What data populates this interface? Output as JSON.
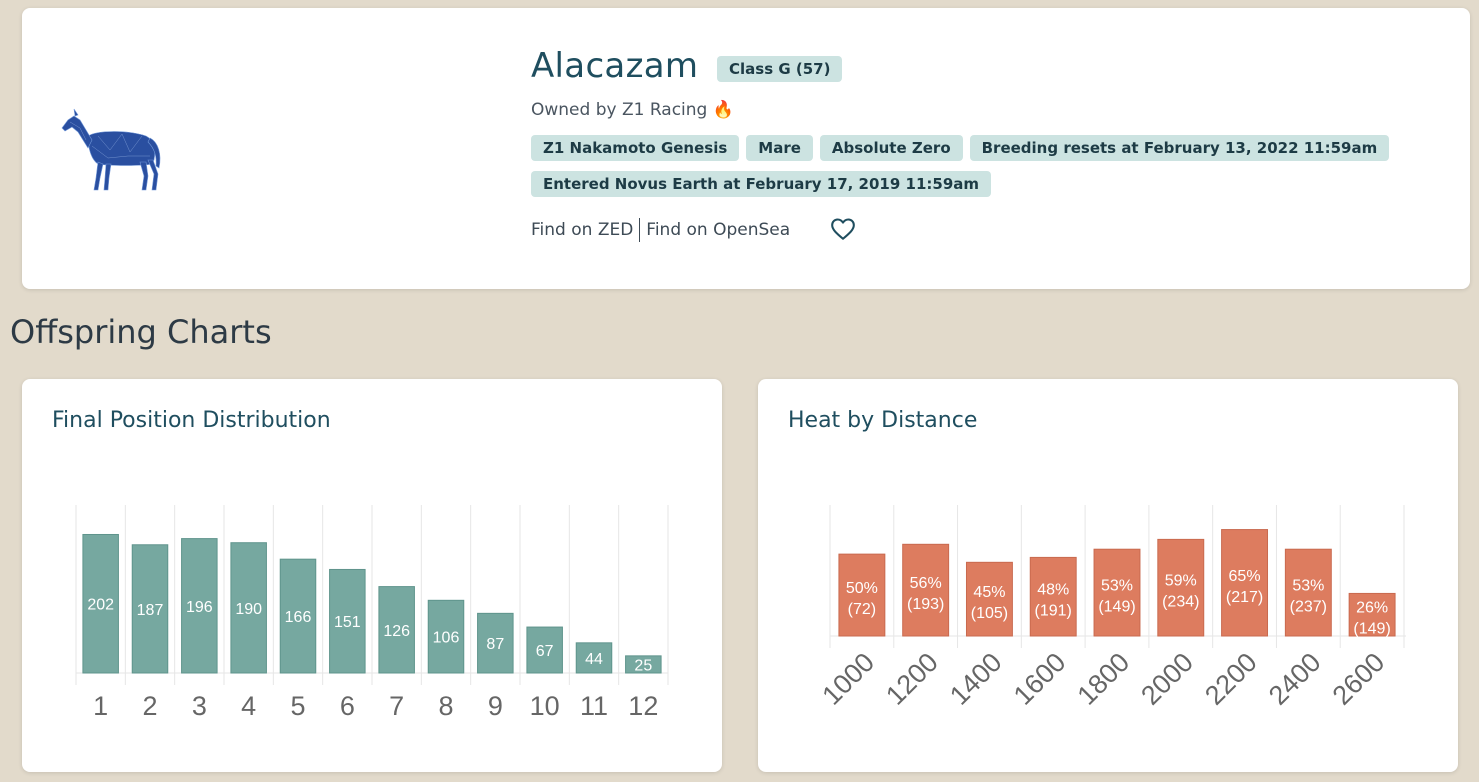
{
  "horse": {
    "name": "Alacazam",
    "class_badge": "Class G (57)",
    "owner_prefix": "Owned by ",
    "owner_name": "Z1 Racing",
    "owner_emoji": "🔥",
    "tags_row1": [
      "Z1 Nakamoto Genesis",
      "Mare",
      "Absolute Zero",
      "Breeding resets at February 13, 2022 11:59am"
    ],
    "tags_row2": [
      "Entered Novus Earth at February 17, 2019 11:59am"
    ],
    "link_zed": "Find on ZED",
    "link_opensea": "Find on OpenSea",
    "favorite_icon": "heart-icon",
    "image_icon": "horse-icon",
    "horse_color": "#2a4fa0"
  },
  "section_title": "Offspring Charts",
  "colors": {
    "teal_bar": "#76a8a0",
    "orange_bar": "#dd7c5f",
    "badge_bg": "#cce3e1"
  },
  "chart_data": [
    {
      "type": "bar",
      "title": "Final Position Distribution",
      "categories": [
        "1",
        "2",
        "3",
        "4",
        "5",
        "6",
        "7",
        "8",
        "9",
        "10",
        "11",
        "12"
      ],
      "values": [
        202,
        187,
        196,
        190,
        166,
        151,
        126,
        106,
        87,
        67,
        44,
        25
      ],
      "data_labels": [
        "202",
        "187",
        "196",
        "190",
        "166",
        "151",
        "126",
        "106",
        "87",
        "67",
        "44",
        "25"
      ],
      "ylim": [
        0,
        245
      ],
      "grid": true
    },
    {
      "type": "bar",
      "title": "Heat by Distance",
      "categories": [
        "1000",
        "1200",
        "1400",
        "1600",
        "1800",
        "2000",
        "2200",
        "2400",
        "2600"
      ],
      "values": [
        50,
        56,
        45,
        48,
        53,
        59,
        65,
        53,
        26
      ],
      "data_labels": [
        [
          "50%",
          "(72)"
        ],
        [
          "56%",
          "(193)"
        ],
        [
          "45%",
          "(105)"
        ],
        [
          "48%",
          "(191)"
        ],
        [
          "53%",
          "(149)"
        ],
        [
          "59%",
          "(234)"
        ],
        [
          "65%",
          "(217)"
        ],
        [
          "53%",
          "(237)"
        ],
        [
          "26%",
          "(149)"
        ]
      ],
      "ylim": [
        0,
        80
      ],
      "grid": true
    }
  ]
}
